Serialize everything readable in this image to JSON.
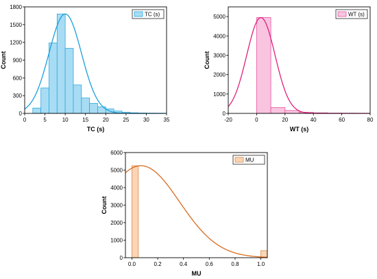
{
  "chart_data": [
    {
      "type": "bar",
      "subtype": "histogram-with-normal-fit",
      "xlabel": "TC (s)",
      "ylabel": "Count",
      "legend": "TC (s)",
      "legend_position": "top-right",
      "xlim": [
        0,
        35
      ],
      "ylim": [
        0,
        1800
      ],
      "xticks": [
        0,
        5,
        10,
        15,
        20,
        25,
        30,
        35
      ],
      "yticks": [
        0,
        300,
        600,
        900,
        1200,
        1500,
        1800
      ],
      "bin_edges": [
        2,
        4,
        6,
        8,
        10,
        12,
        14,
        16,
        18,
        20,
        22,
        24,
        26,
        28,
        30,
        32,
        34
      ],
      "values": [
        90,
        430,
        1190,
        1680,
        1100,
        480,
        260,
        170,
        110,
        75,
        40,
        20,
        10,
        6,
        3,
        2
      ],
      "fit": {
        "mean": 10,
        "sd": 4,
        "peak": 1680
      },
      "colors": {
        "fill": "#a8dcf4",
        "edge": "#2aa8dc",
        "curve": "#1aa0dc"
      }
    },
    {
      "type": "bar",
      "subtype": "histogram-with-normal-fit",
      "xlabel": "WT (s)",
      "ylabel": "Count",
      "legend": "WT (s)",
      "legend_position": "top-right",
      "xlim": [
        -20,
        80
      ],
      "ylim": [
        0,
        5500
      ],
      "xticks": [
        -20,
        0,
        20,
        40,
        60,
        80
      ],
      "yticks": [
        0,
        1000,
        2000,
        3000,
        4000,
        5000
      ],
      "bin_edges": [
        0,
        10,
        20,
        30,
        40,
        50,
        60,
        70,
        80
      ],
      "values": [
        4950,
        300,
        150,
        60,
        30,
        15,
        8,
        4
      ],
      "fit": {
        "mean": 3,
        "sd": 10,
        "peak": 4950
      },
      "colors": {
        "fill": "#f9c4e0",
        "edge": "#e4559f",
        "curve": "#e0207d"
      }
    },
    {
      "type": "bar",
      "subtype": "histogram-with-normal-fit",
      "xlabel": "MU",
      "ylabel": "Count",
      "legend": "MU",
      "legend_position": "top-right",
      "xlim": [
        -0.05,
        1.05
      ],
      "ylim": [
        0,
        6000
      ],
      "xticks": [
        "0.0",
        "0.2",
        "0.4",
        "0.6",
        "0.8",
        "1.0"
      ],
      "yticks": [
        0,
        1000,
        2000,
        3000,
        4000,
        5000,
        6000
      ],
      "bin_edges": [
        0,
        0.05,
        0.1,
        0.15,
        0.2,
        0.25,
        0.3,
        0.35,
        0.4,
        0.45,
        0.5,
        0.55,
        0.6,
        0.65,
        0.7,
        0.75,
        0.8,
        0.85,
        0.9,
        0.95,
        1.0,
        1.05
      ],
      "values": [
        5250,
        0,
        0,
        0,
        0,
        0,
        0,
        0,
        0,
        0,
        0,
        0,
        0,
        0,
        0,
        0,
        0,
        0,
        0,
        0,
        400
      ],
      "fit": {
        "mean": 0.07,
        "sd": 0.3,
        "peak": 5250
      },
      "colors": {
        "fill": "#fbd5b5",
        "edge": "#d98a4a",
        "curve": "#d96a1c"
      }
    }
  ]
}
